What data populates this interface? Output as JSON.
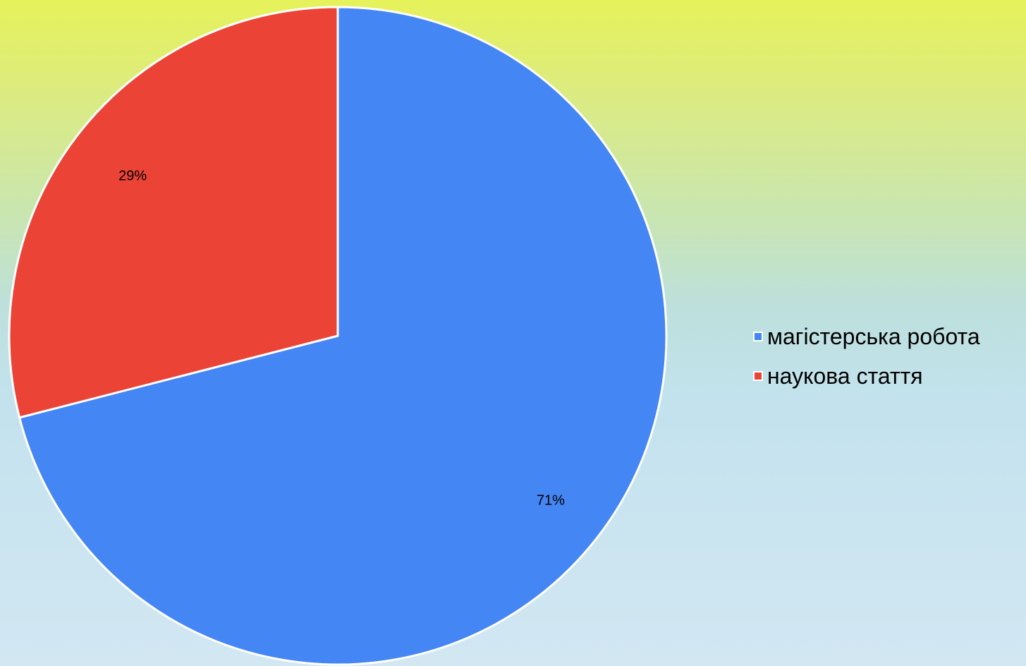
{
  "chart_data": {
    "type": "pie",
    "slices": [
      {
        "label": "магістерська робота",
        "value": 71,
        "display": "71%",
        "color": "#4486f4"
      },
      {
        "label": "наукова стаття",
        "value": 29,
        "display": "29%",
        "color": "#eb4437"
      }
    ],
    "start_angle_deg": 0,
    "direction": "clockwise",
    "legend_placement": "right"
  }
}
